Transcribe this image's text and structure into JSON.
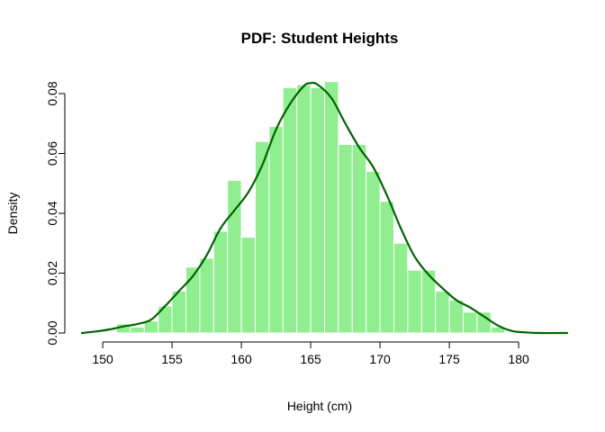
{
  "chart_data": {
    "type": "histogram",
    "title": "PDF: Student Heights",
    "xlabel": "Height (cm)",
    "ylabel": "Density",
    "xlim": [
      148.5,
      183.5
    ],
    "ylim": [
      0,
      0.08
    ],
    "x_ticks": [
      150,
      155,
      160,
      165,
      170,
      175,
      180
    ],
    "y_ticks": [
      "0.00",
      "0.02",
      "0.04",
      "0.06",
      "0.08"
    ],
    "bin_width": 1,
    "bins": [
      {
        "start": 151,
        "end": 152,
        "density": 0.003
      },
      {
        "start": 152,
        "end": 153,
        "density": 0.002
      },
      {
        "start": 153,
        "end": 154,
        "density": 0.004
      },
      {
        "start": 154,
        "end": 155,
        "density": 0.009
      },
      {
        "start": 155,
        "end": 156,
        "density": 0.014
      },
      {
        "start": 156,
        "end": 157,
        "density": 0.022
      },
      {
        "start": 157,
        "end": 158,
        "density": 0.025
      },
      {
        "start": 158,
        "end": 159,
        "density": 0.034
      },
      {
        "start": 159,
        "end": 160,
        "density": 0.051
      },
      {
        "start": 160,
        "end": 161,
        "density": 0.032
      },
      {
        "start": 161,
        "end": 162,
        "density": 0.064
      },
      {
        "start": 162,
        "end": 163,
        "density": 0.069
      },
      {
        "start": 163,
        "end": 164,
        "density": 0.082
      },
      {
        "start": 164,
        "end": 165,
        "density": 0.083
      },
      {
        "start": 165,
        "end": 166,
        "density": 0.082
      },
      {
        "start": 166,
        "end": 167,
        "density": 0.084
      },
      {
        "start": 167,
        "end": 168,
        "density": 0.063
      },
      {
        "start": 168,
        "end": 169,
        "density": 0.063
      },
      {
        "start": 169,
        "end": 170,
        "density": 0.054
      },
      {
        "start": 170,
        "end": 171,
        "density": 0.044
      },
      {
        "start": 171,
        "end": 172,
        "density": 0.03
      },
      {
        "start": 172,
        "end": 173,
        "density": 0.021
      },
      {
        "start": 173,
        "end": 174,
        "density": 0.021
      },
      {
        "start": 174,
        "end": 175,
        "density": 0.014
      },
      {
        "start": 175,
        "end": 176,
        "density": 0.011
      },
      {
        "start": 176,
        "end": 177,
        "density": 0.007
      },
      {
        "start": 177,
        "end": 178,
        "density": 0.007
      },
      {
        "start": 178,
        "end": 179,
        "density": 0.002
      }
    ],
    "density_curve": {
      "x": [
        148.5,
        149.5,
        150.5,
        151.5,
        152.5,
        153.5,
        154.5,
        155.5,
        156.5,
        157.5,
        158.5,
        159.5,
        160.5,
        161.5,
        162.5,
        163.5,
        164.5,
        165.0,
        165.5,
        166.5,
        167.5,
        168.5,
        169.5,
        170.5,
        171.5,
        172.5,
        173.5,
        174.5,
        175.5,
        176.5,
        177.5,
        178.5,
        179.5,
        180.5,
        181.5,
        183.5
      ],
      "y": [
        0.0,
        0.0005,
        0.0012,
        0.0022,
        0.003,
        0.0045,
        0.009,
        0.014,
        0.019,
        0.026,
        0.035,
        0.041,
        0.047,
        0.056,
        0.068,
        0.0765,
        0.0825,
        0.0835,
        0.083,
        0.0785,
        0.07,
        0.062,
        0.0555,
        0.046,
        0.035,
        0.0255,
        0.0195,
        0.015,
        0.011,
        0.0085,
        0.0055,
        0.0025,
        0.0007,
        0.0002,
        0.0,
        0.0
      ]
    },
    "colors": {
      "bar_fill": "#90EE90",
      "bar_border": "#FFFFFF",
      "line": "#006400"
    }
  }
}
